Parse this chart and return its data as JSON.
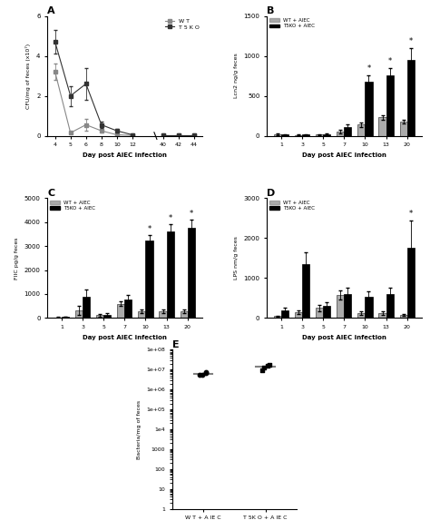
{
  "panel_A": {
    "title": "A",
    "days_main": [
      4,
      5,
      6,
      8,
      10,
      12
    ],
    "days_after": [
      40,
      42,
      44
    ],
    "WT_mean": [
      3.2,
      0.15,
      0.55,
      0.25,
      0.05,
      0.02,
      0.03,
      0.03,
      0.03
    ],
    "WT_err": [
      0.4,
      0.05,
      0.3,
      0.1,
      0.02,
      0.01,
      0.01,
      0.01,
      0.01
    ],
    "T5KO_mean": [
      4.7,
      2.0,
      2.6,
      0.55,
      0.25,
      0.05,
      0.05,
      0.05,
      0.05
    ],
    "T5KO_err": [
      0.6,
      0.5,
      0.8,
      0.15,
      0.1,
      0.02,
      0.02,
      0.02,
      0.02
    ],
    "ylabel": "CFU/mg of feces (x10⁷)",
    "xlabel": "Day post AIEC infection",
    "ylim": [
      0,
      6
    ],
    "yticks": [
      0,
      2,
      4,
      6
    ],
    "legend_WT": "W T",
    "legend_T5KO": "T 5 K O",
    "color_WT": "#888888",
    "color_T5KO": "#333333"
  },
  "panel_B": {
    "title": "B",
    "days": [
      1,
      3,
      5,
      7,
      10,
      13,
      20
    ],
    "WT_mean": [
      20,
      10,
      15,
      55,
      140,
      230,
      175
    ],
    "WT_err": [
      10,
      5,
      8,
      20,
      30,
      30,
      25
    ],
    "T5KO_mean": [
      15,
      15,
      20,
      110,
      680,
      760,
      950
    ],
    "T5KO_err": [
      8,
      8,
      10,
      30,
      80,
      90,
      150
    ],
    "ylabel": "Lcn2 ng/g feces",
    "xlabel": "Day post AIEC infection",
    "ylim": [
      0,
      1500
    ],
    "yticks": [
      0,
      500,
      1000,
      1500
    ],
    "sig_days": [
      10,
      13,
      20
    ],
    "color_WT": "#888888",
    "color_T5KO": "#000000"
  },
  "panel_C": {
    "title": "C",
    "days": [
      1,
      3,
      5,
      7,
      10,
      13,
      20
    ],
    "WT_mean": [
      30,
      320,
      120,
      600,
      280,
      280,
      280
    ],
    "WT_err": [
      10,
      180,
      60,
      100,
      60,
      60,
      60
    ],
    "T5KO_mean": [
      50,
      870,
      140,
      760,
      3250,
      3600,
      3750
    ],
    "T5KO_err": [
      15,
      300,
      60,
      200,
      200,
      300,
      350
    ],
    "ylabel": "FIIC pg/g feces",
    "xlabel": "Day post AIEC infection",
    "ylim": [
      0,
      5000
    ],
    "yticks": [
      0,
      1000,
      2000,
      3000,
      4000,
      5000
    ],
    "sig_days": [
      10,
      13,
      20
    ],
    "color_WT": "#888888",
    "color_T5KO": "#000000"
  },
  "panel_D": {
    "title": "D",
    "days": [
      1,
      3,
      5,
      7,
      10,
      13,
      20
    ],
    "WT_mean": [
      50,
      150,
      250,
      580,
      120,
      120,
      70
    ],
    "WT_err": [
      15,
      50,
      80,
      120,
      40,
      40,
      20
    ],
    "T5KO_mean": [
      200,
      1350,
      300,
      600,
      540,
      600,
      1750
    ],
    "T5KO_err": [
      60,
      300,
      100,
      150,
      120,
      150,
      700
    ],
    "ylabel": "LPS nm/g feces",
    "xlabel": "Day post AIEC infection",
    "ylim": [
      0,
      3000
    ],
    "yticks": [
      0,
      1000,
      2000,
      3000
    ],
    "sig_days": [
      20
    ],
    "color_WT": "#888888",
    "color_T5KO": "#000000"
  },
  "panel_E": {
    "title": "E",
    "ylabel": "Bacteria/mg of feces",
    "xlabel_WT": "W T + A IE C",
    "xlabel_T5KO": "T 5K O + A IE C",
    "WT_points": [
      5500000.0,
      7500000.0,
      5800000.0,
      6500000.0
    ],
    "T5KO_points": [
      9000000.0,
      18000000.0,
      15000000.0,
      13000000.0
    ],
    "WT_median": 6200000.0,
    "T5KO_median": 14000000.0,
    "ylim_low": 1,
    "ylim_high": 100000000,
    "color_WT": "#000000",
    "color_T5KO": "#000000"
  }
}
